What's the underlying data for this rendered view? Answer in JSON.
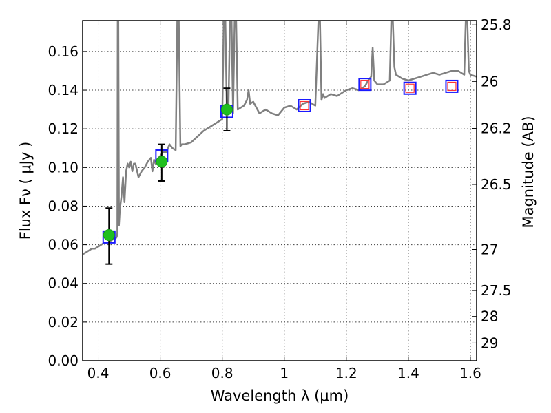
{
  "chart_data": {
    "type": "scatter",
    "xlabel": "Wavelength  λ (μm)",
    "ylabel": "Flux  Fν  ( μJy )",
    "y2label": "Magnitude (AB)",
    "xlim": [
      0.35,
      1.62
    ],
    "ylim": [
      0.0,
      0.176
    ],
    "grid": true,
    "x_ticks": [
      {
        "value": 0.4,
        "label": "0.4"
      },
      {
        "value": 0.6,
        "label": "0.6"
      },
      {
        "value": 0.8,
        "label": "0.8"
      },
      {
        "value": 1.0,
        "label": "1"
      },
      {
        "value": 1.2,
        "label": "1.2"
      },
      {
        "value": 1.4,
        "label": "1.4"
      },
      {
        "value": 1.6,
        "label": "1.6"
      }
    ],
    "y_ticks": [
      {
        "value": 0.0,
        "label": "0.00"
      },
      {
        "value": 0.02,
        "label": "0.02"
      },
      {
        "value": 0.04,
        "label": "0.04"
      },
      {
        "value": 0.06,
        "label": "0.06"
      },
      {
        "value": 0.08,
        "label": "0.08"
      },
      {
        "value": 0.1,
        "label": "0.10"
      },
      {
        "value": 0.12,
        "label": "0.12"
      },
      {
        "value": 0.14,
        "label": "0.14"
      },
      {
        "value": 0.16,
        "label": "0.16"
      }
    ],
    "y2_ticks": [
      {
        "value": 25.8,
        "label": "25.8"
      },
      {
        "value": 26.0,
        "label": "26"
      },
      {
        "value": 26.2,
        "label": "26.2"
      },
      {
        "value": 26.5,
        "label": "26.5"
      },
      {
        "value": 27.0,
        "label": "27"
      },
      {
        "value": 27.5,
        "label": "27.5"
      },
      {
        "value": 28.0,
        "label": "28"
      },
      {
        "value": 29.0,
        "label": "29"
      }
    ],
    "series": [
      {
        "kind": "line",
        "color": "#808080",
        "x": [
          0.35,
          0.36,
          0.37,
          0.38,
          0.39,
          0.4,
          0.41,
          0.42,
          0.43,
          0.44,
          0.45,
          0.455,
          0.46,
          0.462,
          0.463,
          0.465,
          0.467,
          0.47,
          0.475,
          0.48,
          0.485,
          0.49,
          0.495,
          0.5,
          0.505,
          0.51,
          0.515,
          0.52,
          0.53,
          0.54,
          0.55,
          0.56,
          0.57,
          0.575,
          0.58,
          0.585,
          0.59,
          0.6,
          0.61,
          0.62,
          0.63,
          0.64,
          0.65,
          0.655,
          0.66,
          0.665,
          0.67,
          0.68,
          0.7,
          0.72,
          0.74,
          0.76,
          0.78,
          0.8,
          0.805,
          0.81,
          0.815,
          0.82,
          0.825,
          0.83,
          0.835,
          0.84,
          0.845,
          0.85,
          0.87,
          0.88,
          0.885,
          0.89,
          0.9,
          0.92,
          0.94,
          0.96,
          0.98,
          1.0,
          1.02,
          1.04,
          1.06,
          1.08,
          1.1,
          1.11,
          1.115,
          1.12,
          1.125,
          1.13,
          1.15,
          1.17,
          1.2,
          1.22,
          1.24,
          1.26,
          1.27,
          1.28,
          1.285,
          1.29,
          1.3,
          1.32,
          1.34,
          1.345,
          1.35,
          1.355,
          1.36,
          1.38,
          1.4,
          1.42,
          1.44,
          1.46,
          1.48,
          1.5,
          1.52,
          1.54,
          1.56,
          1.58,
          1.585,
          1.59,
          1.595,
          1.6,
          1.62
        ],
        "y": [
          0.055,
          0.056,
          0.057,
          0.058,
          0.058,
          0.059,
          0.06,
          0.061,
          0.061,
          0.062,
          0.063,
          0.063,
          0.064,
          0.066,
          0.176,
          0.176,
          0.07,
          0.078,
          0.085,
          0.095,
          0.082,
          0.098,
          0.102,
          0.1,
          0.103,
          0.098,
          0.102,
          0.102,
          0.095,
          0.098,
          0.1,
          0.103,
          0.105,
          0.098,
          0.104,
          0.102,
          0.104,
          0.106,
          0.108,
          0.108,
          0.112,
          0.11,
          0.109,
          0.176,
          0.176,
          0.111,
          0.112,
          0.112,
          0.113,
          0.116,
          0.119,
          0.121,
          0.123,
          0.125,
          0.176,
          0.176,
          0.128,
          0.13,
          0.176,
          0.176,
          0.128,
          0.176,
          0.176,
          0.13,
          0.132,
          0.135,
          0.14,
          0.133,
          0.134,
          0.128,
          0.13,
          0.128,
          0.127,
          0.131,
          0.132,
          0.13,
          0.133,
          0.134,
          0.132,
          0.176,
          0.176,
          0.135,
          0.138,
          0.136,
          0.138,
          0.137,
          0.14,
          0.141,
          0.14,
          0.142,
          0.145,
          0.147,
          0.162,
          0.145,
          0.143,
          0.143,
          0.145,
          0.176,
          0.176,
          0.152,
          0.148,
          0.146,
          0.145,
          0.146,
          0.147,
          0.148,
          0.149,
          0.148,
          0.149,
          0.15,
          0.15,
          0.148,
          0.176,
          0.176,
          0.15,
          0.148,
          0.147
        ]
      },
      {
        "kind": "open-square",
        "edge_color": "#1a1aff",
        "x": [
          0.435,
          0.605,
          0.815,
          1.065,
          1.26,
          1.405,
          1.54
        ],
        "y": [
          0.064,
          0.106,
          0.129,
          0.132,
          0.143,
          0.141,
          0.142
        ]
      },
      {
        "kind": "open-square",
        "edge_color": "#ff3333",
        "x": [
          1.065,
          1.26,
          1.405,
          1.54
        ],
        "y": [
          0.132,
          0.143,
          0.141,
          0.142
        ]
      },
      {
        "kind": "point-errorbar",
        "color": "#1fbf1f",
        "x": [
          0.435,
          0.605,
          0.815
        ],
        "y": [
          0.065,
          0.103,
          0.13
        ],
        "yerr_low": [
          0.05,
          0.093,
          0.119
        ],
        "yerr_high": [
          0.079,
          0.112,
          0.141
        ]
      }
    ]
  }
}
